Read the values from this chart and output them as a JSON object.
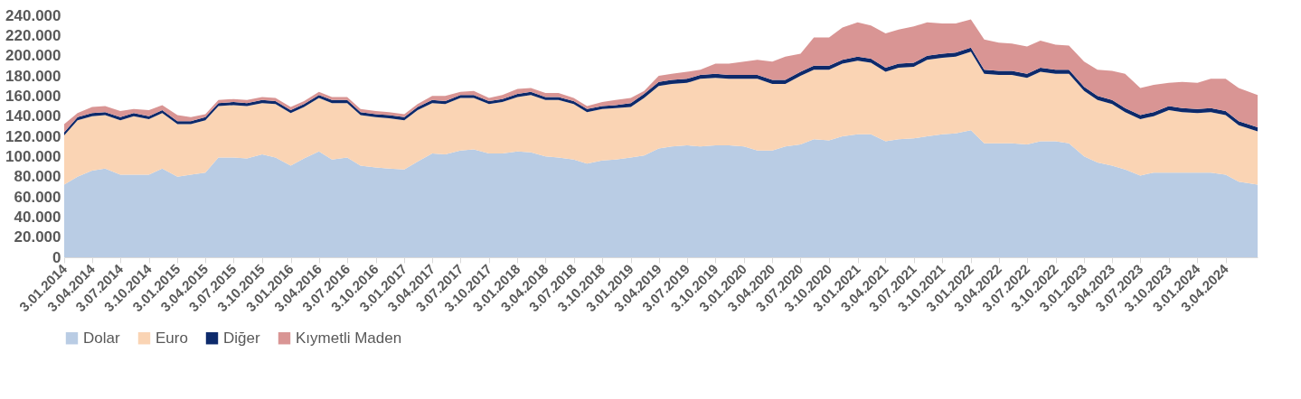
{
  "chart_data": {
    "type": "area",
    "stacked": true,
    "legend": "bottom",
    "grid": false,
    "marker": "none",
    "x": [
      "2014-01-03",
      "2014-02-15",
      "2014-04-03",
      "2014-05-15",
      "2014-07-03",
      "2014-08-15",
      "2014-10-03",
      "2014-11-15",
      "2015-01-03",
      "2015-02-15",
      "2015-04-03",
      "2015-05-15",
      "2015-07-03",
      "2015-08-15",
      "2015-10-03",
      "2015-11-15",
      "2016-01-03",
      "2016-02-15",
      "2016-04-03",
      "2016-05-15",
      "2016-07-03",
      "2016-08-15",
      "2016-10-03",
      "2016-11-15",
      "2017-01-03",
      "2017-02-15",
      "2017-04-03",
      "2017-05-15",
      "2017-07-03",
      "2017-08-15",
      "2017-10-03",
      "2017-11-15",
      "2018-01-03",
      "2018-02-15",
      "2018-04-03",
      "2018-05-15",
      "2018-07-03",
      "2018-08-15",
      "2018-10-03",
      "2018-11-15",
      "2019-01-03",
      "2019-02-15",
      "2019-04-03",
      "2019-05-15",
      "2019-07-03",
      "2019-08-15",
      "2019-10-03",
      "2019-11-15",
      "2020-01-03",
      "2020-02-15",
      "2020-04-03",
      "2020-05-15",
      "2020-07-03",
      "2020-08-15",
      "2020-10-03",
      "2020-11-15",
      "2021-01-03",
      "2021-02-15",
      "2021-04-03",
      "2021-05-15",
      "2021-07-03",
      "2021-08-15",
      "2021-10-03",
      "2021-11-15",
      "2022-01-03",
      "2022-02-15",
      "2022-04-03",
      "2022-05-15",
      "2022-07-03",
      "2022-08-15",
      "2022-10-03",
      "2022-11-15",
      "2023-01-03",
      "2023-02-15",
      "2023-04-03",
      "2023-05-15",
      "2023-07-03",
      "2023-08-15",
      "2023-10-03",
      "2023-11-15",
      "2024-01-03",
      "2024-02-15",
      "2024-04-03",
      "2024-05-15",
      "2024-07-15"
    ],
    "series": [
      {
        "name": "Dolar",
        "color": "#b9cce4",
        "values": [
          72000,
          80000,
          86000,
          88000,
          82000,
          82000,
          82000,
          88000,
          80000,
          82000,
          84000,
          99000,
          99000,
          98000,
          102000,
          99000,
          91000,
          98000,
          105000,
          97000,
          99000,
          91000,
          89000,
          88000,
          87000,
          95000,
          103000,
          102000,
          106000,
          107000,
          103000,
          103000,
          105000,
          104000,
          100000,
          99000,
          97000,
          93000,
          96000,
          97000,
          99000,
          101000,
          108000,
          110000,
          111000,
          110000,
          111000,
          111000,
          110000,
          106000,
          106000,
          110000,
          112000,
          117000,
          116000,
          120000,
          122000,
          122000,
          115000,
          117000,
          118000,
          120000,
          122000,
          123000,
          126000,
          113000,
          113000,
          113000,
          112000,
          115000,
          115000,
          113000,
          100000,
          94000,
          91000,
          87000,
          81000,
          84000,
          84000,
          84000,
          84000,
          84000,
          82000,
          75000,
          72000
        ]
      },
      {
        "name": "Euro",
        "color": "#fad4b4",
        "values": [
          49000,
          56000,
          54000,
          53000,
          54000,
          58000,
          55000,
          55000,
          52000,
          50000,
          52000,
          51000,
          52000,
          52000,
          51000,
          53000,
          52000,
          51000,
          53000,
          56000,
          54000,
          50000,
          50000,
          50000,
          49000,
          51000,
          50000,
          50000,
          52000,
          51000,
          49000,
          51000,
          54000,
          57000,
          56000,
          57000,
          55000,
          51000,
          51000,
          51000,
          50000,
          57000,
          62000,
          62000,
          62000,
          67000,
          67000,
          66000,
          67000,
          71000,
          66000,
          62000,
          68000,
          69000,
          70000,
          72000,
          73000,
          71000,
          69000,
          71000,
          71000,
          76000,
          76000,
          76000,
          78000,
          69000,
          68000,
          68000,
          66000,
          69000,
          67000,
          69000,
          65000,
          62000,
          61000,
          57000,
          56000,
          56000,
          62000,
          60000,
          59000,
          60000,
          59000,
          56000,
          53000
        ]
      },
      {
        "name": "Diğer",
        "color": "#0d2a6b",
        "values": [
          3000,
          3000,
          3000,
          3000,
          3000,
          3000,
          3000,
          3000,
          3000,
          3000,
          3000,
          3000,
          3000,
          3000,
          3000,
          3000,
          3000,
          3000,
          3000,
          3000,
          3000,
          3000,
          3000,
          3000,
          3000,
          3000,
          3000,
          3000,
          3000,
          3000,
          3000,
          3000,
          3000,
          3000,
          3000,
          3000,
          3000,
          3000,
          3000,
          3000,
          4000,
          4000,
          4000,
          4000,
          4000,
          4000,
          4000,
          4000,
          4000,
          4000,
          4000,
          4000,
          4000,
          4000,
          4000,
          4000,
          4000,
          4000,
          4000,
          4000,
          4000,
          4000,
          4000,
          4000,
          4000,
          4000,
          4000,
          4000,
          4000,
          4000,
          4000,
          4000,
          4000,
          4000,
          4000,
          4000,
          4000,
          4000,
          4000,
          4000,
          4000,
          4000,
          4000,
          4000,
          4000
        ]
      },
      {
        "name": "Kıymetli Maden",
        "color": "#d99594",
        "values": [
          8000,
          4000,
          6000,
          6000,
          6000,
          4000,
          6000,
          5000,
          6000,
          4000,
          3000,
          3000,
          3000,
          3000,
          3000,
          3000,
          3000,
          3000,
          3000,
          3000,
          3000,
          3000,
          3000,
          3000,
          3000,
          3000,
          4000,
          5000,
          3000,
          4000,
          3000,
          4000,
          5000,
          4000,
          4000,
          4000,
          3000,
          3000,
          4000,
          5000,
          5000,
          3000,
          6000,
          6000,
          7000,
          5000,
          10000,
          11000,
          13000,
          15000,
          18000,
          23000,
          18000,
          28000,
          28000,
          32000,
          34000,
          33000,
          34000,
          34000,
          36000,
          33000,
          30000,
          29000,
          28000,
          30000,
          28000,
          27000,
          27000,
          27000,
          25000,
          24000,
          25000,
          26000,
          29000,
          34000,
          27000,
          27000,
          23000,
          26000,
          26000,
          29000,
          32000,
          33000,
          32000
        ]
      }
    ],
    "xlim": [
      "2014-01-03",
      "2024-07-15"
    ],
    "xticks": [
      {
        "value": "2014-01-03",
        "label": "3.01.2014"
      },
      {
        "value": "2014-04-03",
        "label": "3.04.2014"
      },
      {
        "value": "2014-07-03",
        "label": "3.07.2014"
      },
      {
        "value": "2014-10-03",
        "label": "3.10.2014"
      },
      {
        "value": "2015-01-03",
        "label": "3.01.2015"
      },
      {
        "value": "2015-04-03",
        "label": "3.04.2015"
      },
      {
        "value": "2015-07-03",
        "label": "3.07.2015"
      },
      {
        "value": "2015-10-03",
        "label": "3.10.2015"
      },
      {
        "value": "2016-01-03",
        "label": "3.01.2016"
      },
      {
        "value": "2016-04-03",
        "label": "3.04.2016"
      },
      {
        "value": "2016-07-03",
        "label": "3.07.2016"
      },
      {
        "value": "2016-10-03",
        "label": "3.10.2016"
      },
      {
        "value": "2017-01-03",
        "label": "3.01.2017"
      },
      {
        "value": "2017-04-03",
        "label": "3.04.2017"
      },
      {
        "value": "2017-07-03",
        "label": "3.07.2017"
      },
      {
        "value": "2017-10-03",
        "label": "3.10.2017"
      },
      {
        "value": "2018-01-03",
        "label": "3.01.2018"
      },
      {
        "value": "2018-04-03",
        "label": "3.04.2018"
      },
      {
        "value": "2018-07-03",
        "label": "3.07.2018"
      },
      {
        "value": "2018-10-03",
        "label": "3.10.2018"
      },
      {
        "value": "2019-01-03",
        "label": "3.01.2019"
      },
      {
        "value": "2019-04-03",
        "label": "3.04.2019"
      },
      {
        "value": "2019-07-03",
        "label": "3.07.2019"
      },
      {
        "value": "2019-10-03",
        "label": "3.10.2019"
      },
      {
        "value": "2020-01-03",
        "label": "3.01.2020"
      },
      {
        "value": "2020-04-03",
        "label": "3.04.2020"
      },
      {
        "value": "2020-07-03",
        "label": "3.07.2020"
      },
      {
        "value": "2020-10-03",
        "label": "3.10.2020"
      },
      {
        "value": "2021-01-03",
        "label": "3.01.2021"
      },
      {
        "value": "2021-04-03",
        "label": "3.04.2021"
      },
      {
        "value": "2021-07-03",
        "label": "3.07.2021"
      },
      {
        "value": "2021-10-03",
        "label": "3.10.2021"
      },
      {
        "value": "2022-01-03",
        "label": "3.01.2022"
      },
      {
        "value": "2022-04-03",
        "label": "3.04.2022"
      },
      {
        "value": "2022-07-03",
        "label": "3.07.2022"
      },
      {
        "value": "2022-10-03",
        "label": "3.10.2022"
      },
      {
        "value": "2023-01-03",
        "label": "3.01.2023"
      },
      {
        "value": "2023-04-03",
        "label": "3.04.2023"
      },
      {
        "value": "2023-07-03",
        "label": "3.07.2023"
      },
      {
        "value": "2023-10-03",
        "label": "3.10.2023"
      },
      {
        "value": "2024-01-03",
        "label": "3.01.2024"
      },
      {
        "value": "2024-04-03",
        "label": "3.04.2024"
      }
    ],
    "ylim": [
      0,
      240000
    ],
    "yticks": [
      {
        "value": 0,
        "label": "0"
      },
      {
        "value": 20000,
        "label": "20.000"
      },
      {
        "value": 40000,
        "label": "40.000"
      },
      {
        "value": 60000,
        "label": "60.000"
      },
      {
        "value": 80000,
        "label": "80.000"
      },
      {
        "value": 100000,
        "label": "100.000"
      },
      {
        "value": 120000,
        "label": "120.000"
      },
      {
        "value": 140000,
        "label": "140.000"
      },
      {
        "value": 160000,
        "label": "160.000"
      },
      {
        "value": 180000,
        "label": "180.000"
      },
      {
        "value": 200000,
        "label": "200.000"
      },
      {
        "value": 220000,
        "label": "220.000"
      },
      {
        "value": 240000,
        "label": "240.000"
      }
    ]
  }
}
